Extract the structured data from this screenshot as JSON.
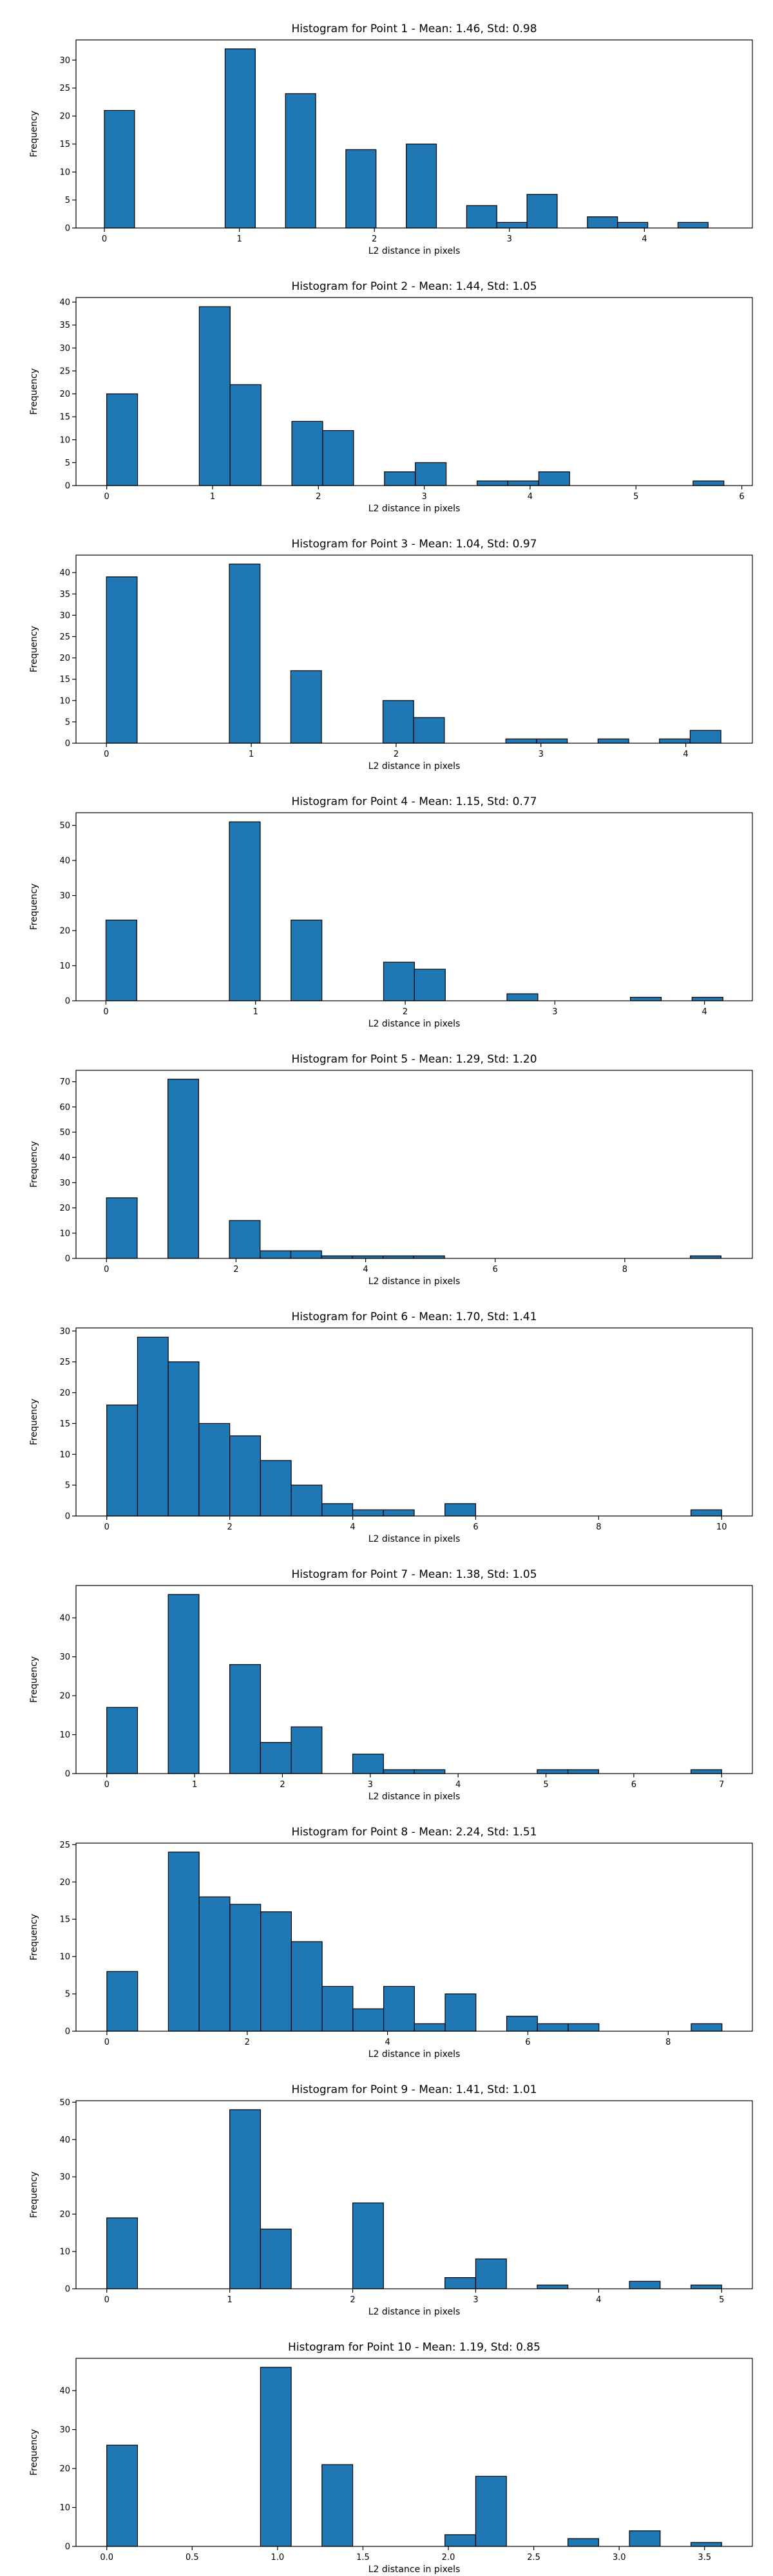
{
  "chart_data": [
    {
      "type": "bar",
      "title": "Histogram for Point 1 - Mean: 1.46, Std: 0.98",
      "xlabel": "L2 distance in pixels",
      "ylabel": "Frequency",
      "xlim": [
        -0.21,
        4.8
      ],
      "ylim": [
        0,
        33.6
      ],
      "xticks": [
        {
          "v": 0,
          "label": "0"
        },
        {
          "v": 1,
          "label": "1"
        },
        {
          "v": 2,
          "label": "2"
        },
        {
          "v": 3,
          "label": "3"
        },
        {
          "v": 4,
          "label": "4"
        }
      ],
      "yticks": [
        {
          "v": 0,
          "label": "0"
        },
        {
          "v": 5,
          "label": "5"
        },
        {
          "v": 10,
          "label": "10"
        },
        {
          "v": 15,
          "label": "15"
        },
        {
          "v": 20,
          "label": "20"
        },
        {
          "v": 25,
          "label": "25"
        },
        {
          "v": 30,
          "label": "30"
        }
      ],
      "bin_width": 0.2236,
      "bin_starts": [
        0,
        0.8944,
        1.3416,
        1.7888,
        2.2361,
        2.6833,
        2.9069,
        3.1305,
        3.5777,
        3.8013,
        4.2485
      ],
      "values": [
        21,
        32,
        24,
        14,
        15,
        4,
        1,
        6,
        2,
        1,
        1
      ]
    },
    {
      "type": "bar",
      "title": "Histogram for Point 2 - Mean: 1.44, Std: 1.05",
      "xlabel": "L2 distance in pixels",
      "ylabel": "Frequency",
      "xlim": [
        -0.29,
        6.1
      ],
      "ylim": [
        0,
        41
      ],
      "xticks": [
        {
          "v": 0,
          "label": "0"
        },
        {
          "v": 1,
          "label": "1"
        },
        {
          "v": 2,
          "label": "2"
        },
        {
          "v": 3,
          "label": "3"
        },
        {
          "v": 4,
          "label": "4"
        },
        {
          "v": 5,
          "label": "5"
        },
        {
          "v": 6,
          "label": "6"
        }
      ],
      "yticks": [
        {
          "v": 0,
          "label": "0"
        },
        {
          "v": 5,
          "label": "5"
        },
        {
          "v": 10,
          "label": "10"
        },
        {
          "v": 15,
          "label": "15"
        },
        {
          "v": 20,
          "label": "20"
        },
        {
          "v": 25,
          "label": "25"
        },
        {
          "v": 30,
          "label": "30"
        },
        {
          "v": 35,
          "label": "35"
        },
        {
          "v": 40,
          "label": "40"
        }
      ],
      "bin_width": 0.2915,
      "bin_starts": [
        0,
        0.8746,
        1.1662,
        1.7493,
        2.0408,
        2.6239,
        2.9155,
        3.4986,
        3.7901,
        4.0817,
        5.5394
      ],
      "values": [
        20,
        39,
        22,
        14,
        12,
        3,
        5,
        1,
        1,
        3,
        1
      ]
    },
    {
      "type": "bar",
      "title": "Histogram for Point 3 - Mean: 1.04, Std: 0.97",
      "xlabel": "L2 distance in pixels",
      "ylabel": "Frequency",
      "xlim": [
        -0.21,
        4.46
      ],
      "ylim": [
        0,
        44.1
      ],
      "xticks": [
        {
          "v": 0,
          "label": "0"
        },
        {
          "v": 1,
          "label": "1"
        },
        {
          "v": 2,
          "label": "2"
        },
        {
          "v": 3,
          "label": "3"
        },
        {
          "v": 4,
          "label": "4"
        }
      ],
      "yticks": [
        {
          "v": 0,
          "label": "0"
        },
        {
          "v": 5,
          "label": "5"
        },
        {
          "v": 10,
          "label": "10"
        },
        {
          "v": 15,
          "label": "15"
        },
        {
          "v": 20,
          "label": "20"
        },
        {
          "v": 25,
          "label": "25"
        },
        {
          "v": 30,
          "label": "30"
        },
        {
          "v": 35,
          "label": "35"
        },
        {
          "v": 40,
          "label": "40"
        }
      ],
      "bin_width": 0.2121,
      "bin_starts": [
        0,
        0.8485,
        1.2728,
        1.9092,
        2.1213,
        2.7577,
        2.9698,
        3.3941,
        3.8184,
        4.0305
      ],
      "values": [
        39,
        42,
        17,
        10,
        6,
        1,
        1,
        1,
        1,
        3
      ]
    },
    {
      "type": "bar",
      "title": "Histogram for Point 4 - Mean: 1.15, Std: 0.77",
      "xlabel": "L2 distance in pixels",
      "ylabel": "Frequency",
      "xlim": [
        -0.2,
        4.32
      ],
      "ylim": [
        0,
        53.6
      ],
      "xticks": [
        {
          "v": 0,
          "label": "0"
        },
        {
          "v": 1,
          "label": "1"
        },
        {
          "v": 2,
          "label": "2"
        },
        {
          "v": 3,
          "label": "3"
        },
        {
          "v": 4,
          "label": "4"
        }
      ],
      "yticks": [
        {
          "v": 0,
          "label": "0"
        },
        {
          "v": 10,
          "label": "10"
        },
        {
          "v": 20,
          "label": "20"
        },
        {
          "v": 30,
          "label": "30"
        },
        {
          "v": 40,
          "label": "40"
        },
        {
          "v": 50,
          "label": "50"
        }
      ],
      "bin_width": 0.2062,
      "bin_starts": [
        0,
        0.8246,
        1.2369,
        1.8554,
        2.0616,
        2.68,
        3.5046,
        3.9169
      ],
      "values": [
        23,
        51,
        23,
        11,
        9,
        2,
        1,
        1
      ]
    },
    {
      "type": "bar",
      "title": "Histogram for Point 5 - Mean: 1.29, Std: 1.20",
      "xlabel": "L2 distance in pixels",
      "ylabel": "Frequency",
      "xlim": [
        -0.47,
        9.97
      ],
      "ylim": [
        0,
        74.5
      ],
      "xticks": [
        {
          "v": 0,
          "label": "0"
        },
        {
          "v": 2,
          "label": "2"
        },
        {
          "v": 4,
          "label": "4"
        },
        {
          "v": 6,
          "label": "6"
        },
        {
          "v": 8,
          "label": "8"
        }
      ],
      "yticks": [
        {
          "v": 0,
          "label": "0"
        },
        {
          "v": 10,
          "label": "10"
        },
        {
          "v": 20,
          "label": "20"
        },
        {
          "v": 30,
          "label": "30"
        },
        {
          "v": 40,
          "label": "40"
        },
        {
          "v": 50,
          "label": "50"
        },
        {
          "v": 60,
          "label": "60"
        },
        {
          "v": 70,
          "label": "70"
        }
      ],
      "bin_width": 0.4743,
      "bin_starts": [
        0,
        0.9487,
        1.8974,
        2.3717,
        2.846,
        3.3204,
        3.7947,
        4.2691,
        4.7434,
        9.0125
      ],
      "values": [
        24,
        71,
        15,
        3,
        3,
        1,
        1,
        1,
        1,
        1
      ]
    },
    {
      "type": "bar",
      "title": "Histogram for Point 6 - Mean: 1.70, Std: 1.41",
      "xlabel": "L2 distance in pixels",
      "ylabel": "Frequency",
      "xlim": [
        -0.5,
        10.5
      ],
      "ylim": [
        0,
        30.5
      ],
      "xticks": [
        {
          "v": 0,
          "label": "0"
        },
        {
          "v": 2,
          "label": "2"
        },
        {
          "v": 4,
          "label": "4"
        },
        {
          "v": 6,
          "label": "6"
        },
        {
          "v": 8,
          "label": "8"
        },
        {
          "v": 10,
          "label": "10"
        }
      ],
      "yticks": [
        {
          "v": 0,
          "label": "0"
        },
        {
          "v": 5,
          "label": "5"
        },
        {
          "v": 10,
          "label": "10"
        },
        {
          "v": 15,
          "label": "15"
        },
        {
          "v": 20,
          "label": "20"
        },
        {
          "v": 25,
          "label": "25"
        },
        {
          "v": 30,
          "label": "30"
        }
      ],
      "bin_width": 0.5,
      "bin_starts": [
        0,
        0.5,
        1.0,
        1.5,
        2.0,
        2.5,
        3.0,
        3.5,
        4.0,
        4.5,
        5.5,
        9.5
      ],
      "values": [
        18,
        29,
        25,
        15,
        13,
        9,
        5,
        2,
        1,
        1,
        2,
        1
      ]
    },
    {
      "type": "bar",
      "title": "Histogram for Point 7 - Mean: 1.38, Std: 1.05",
      "xlabel": "L2 distance in pixels",
      "ylabel": "Frequency",
      "xlim": [
        -0.35,
        7.35
      ],
      "ylim": [
        0,
        48.3
      ],
      "xticks": [
        {
          "v": 0,
          "label": "0"
        },
        {
          "v": 1,
          "label": "1"
        },
        {
          "v": 2,
          "label": "2"
        },
        {
          "v": 3,
          "label": "3"
        },
        {
          "v": 4,
          "label": "4"
        },
        {
          "v": 5,
          "label": "5"
        },
        {
          "v": 6,
          "label": "6"
        },
        {
          "v": 7,
          "label": "7"
        }
      ],
      "yticks": [
        {
          "v": 0,
          "label": "0"
        },
        {
          "v": 10,
          "label": "10"
        },
        {
          "v": 20,
          "label": "20"
        },
        {
          "v": 30,
          "label": "30"
        },
        {
          "v": 40,
          "label": "40"
        }
      ],
      "bin_width": 0.35,
      "bin_starts": [
        0,
        0.7,
        1.4,
        1.75,
        2.1,
        2.8,
        3.15,
        3.5,
        4.9,
        5.25,
        6.65
      ],
      "values": [
        17,
        46,
        28,
        8,
        12,
        5,
        1,
        1,
        1,
        1,
        1
      ]
    },
    {
      "type": "bar",
      "title": "Histogram for Point 8 - Mean: 2.24, Std: 1.51",
      "xlabel": "L2 distance in pixels",
      "ylabel": "Frequency",
      "xlim": [
        -0.44,
        9.2
      ],
      "ylim": [
        0,
        25.2
      ],
      "xticks": [
        {
          "v": 0,
          "label": "0"
        },
        {
          "v": 2,
          "label": "2"
        },
        {
          "v": 4,
          "label": "4"
        },
        {
          "v": 6,
          "label": "6"
        },
        {
          "v": 8,
          "label": "8"
        }
      ],
      "yticks": [
        {
          "v": 0,
          "label": "0"
        },
        {
          "v": 5,
          "label": "5"
        },
        {
          "v": 10,
          "label": "10"
        },
        {
          "v": 15,
          "label": "15"
        },
        {
          "v": 20,
          "label": "20"
        },
        {
          "v": 25,
          "label": "25"
        }
      ],
      "bin_width": 0.4383,
      "bin_starts": [
        0,
        0.8766,
        1.3149,
        1.7532,
        2.1915,
        2.6298,
        3.0681,
        3.5064,
        3.9447,
        4.383,
        4.8213,
        5.6979,
        6.1362,
        6.5745,
        8.3277
      ],
      "values": [
        8,
        24,
        18,
        17,
        16,
        12,
        6,
        3,
        6,
        1,
        5,
        2,
        1,
        1,
        1
      ]
    },
    {
      "type": "bar",
      "title": "Histogram for Point 9 - Mean: 1.41, Std: 1.01",
      "xlabel": "L2 distance in pixels",
      "ylabel": "Frequency",
      "xlim": [
        -0.25,
        5.25
      ],
      "ylim": [
        0,
        50.4
      ],
      "xticks": [
        {
          "v": 0,
          "label": "0"
        },
        {
          "v": 1,
          "label": "1"
        },
        {
          "v": 2,
          "label": "2"
        },
        {
          "v": 3,
          "label": "3"
        },
        {
          "v": 4,
          "label": "4"
        },
        {
          "v": 5,
          "label": "5"
        }
      ],
      "yticks": [
        {
          "v": 0,
          "label": "0"
        },
        {
          "v": 10,
          "label": "10"
        },
        {
          "v": 20,
          "label": "20"
        },
        {
          "v": 30,
          "label": "30"
        },
        {
          "v": 40,
          "label": "40"
        },
        {
          "v": 50,
          "label": "50"
        }
      ],
      "bin_width": 0.25,
      "bin_starts": [
        0,
        1.0,
        1.25,
        2.0,
        2.75,
        3.0,
        3.5,
        4.25,
        4.75
      ],
      "values": [
        19,
        48,
        16,
        23,
        3,
        8,
        1,
        2,
        1
      ]
    },
    {
      "type": "bar",
      "title": "Histogram for Point 10 - Mean: 1.19, Std: 0.85",
      "xlabel": "L2 distance in pixels",
      "ylabel": "Frequency",
      "xlim": [
        -0.18,
        3.78
      ],
      "ylim": [
        0,
        48.3
      ],
      "xticks": [
        {
          "v": 0,
          "label": "0.0"
        },
        {
          "v": 0.5,
          "label": "0.5"
        },
        {
          "v": 1.0,
          "label": "1.0"
        },
        {
          "v": 1.5,
          "label": "1.5"
        },
        {
          "v": 2.0,
          "label": "2.0"
        },
        {
          "v": 2.5,
          "label": "2.5"
        },
        {
          "v": 3.0,
          "label": "3.0"
        },
        {
          "v": 3.5,
          "label": "3.5"
        }
      ],
      "yticks": [
        {
          "v": 0,
          "label": "0"
        },
        {
          "v": 10,
          "label": "10"
        },
        {
          "v": 20,
          "label": "20"
        },
        {
          "v": 30,
          "label": "30"
        },
        {
          "v": 40,
          "label": "40"
        }
      ],
      "bin_width": 0.18,
      "bin_starts": [
        0,
        0.9,
        1.26,
        1.98,
        2.16,
        2.7,
        3.06,
        3.42
      ],
      "values": [
        26,
        46,
        21,
        3,
        18,
        2,
        4,
        1
      ]
    }
  ]
}
